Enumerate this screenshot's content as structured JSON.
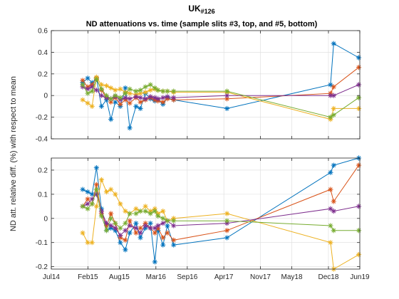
{
  "chart_data": {
    "type": "line",
    "title": "UK",
    "title_subscript": "#126",
    "subtitle": "ND attenuations vs. time (sample slits #3, top, and #5, bottom)",
    "ylabel": "ND att. relative diff. (%) with respect to mean",
    "xlabel": "",
    "grid": true,
    "x_tick_labels": [
      "Jul14",
      "Feb15",
      "Aug15",
      "Mar16",
      "Sep16",
      "Apr17",
      "Nov17",
      "May18",
      "Dec18",
      "Jun19"
    ],
    "x_ticks": [
      2014.5,
      2015.083,
      2015.583,
      2016.167,
      2016.667,
      2017.25,
      2017.833,
      2018.333,
      2018.917,
      2019.417
    ],
    "xlim": [
      2014.5,
      2019.417
    ],
    "colors": [
      "#0072BD",
      "#D95319",
      "#EDB120",
      "#7E2F8E",
      "#77AC30"
    ],
    "panels": [
      {
        "ylim": [
          -0.4,
          0.6
        ],
        "y_ticks": [
          -0.4,
          -0.2,
          0,
          0.2,
          0.4,
          0.6
        ],
        "y_tick_labels": [
          "-0.4",
          "-0.2",
          "0",
          "0.2",
          "0.4",
          "0.6"
        ],
        "series": [
          {
            "x": [
              2015.0,
              2015.08,
              2015.15,
              2015.22,
              2015.3,
              2015.38,
              2015.45,
              2015.52,
              2015.6,
              2015.68,
              2015.75,
              2015.85,
              2015.92,
              2016.0,
              2016.08,
              2016.15,
              2016.2,
              2016.28,
              2016.35,
              2016.45,
              2017.3,
              2018.95,
              2019.0,
              2019.4
            ],
            "y": [
              0.12,
              0.16,
              0.12,
              0.16,
              -0.1,
              -0.04,
              -0.22,
              -0.06,
              -0.1,
              0.07,
              -0.3,
              -0.1,
              -0.12,
              0.02,
              -0.03,
              -0.05,
              -0.04,
              -0.08,
              -0.02,
              -0.04,
              -0.12,
              0.1,
              0.48,
              0.35
            ]
          },
          {
            "x": [
              2015.0,
              2015.08,
              2015.15,
              2015.22,
              2015.3,
              2015.38,
              2015.45,
              2015.52,
              2015.6,
              2015.68,
              2015.75,
              2015.85,
              2015.92,
              2016.0,
              2016.08,
              2016.15,
              2016.2,
              2016.28,
              2016.35,
              2016.45,
              2017.3,
              2018.95,
              2019.0,
              2019.4
            ],
            "y": [
              0.14,
              0.08,
              0.1,
              0.16,
              0.05,
              -0.02,
              -0.06,
              -0.02,
              -0.08,
              -0.04,
              -0.07,
              -0.02,
              -0.06,
              -0.04,
              -0.02,
              -0.04,
              -0.05,
              -0.06,
              -0.03,
              -0.04,
              -0.03,
              0.02,
              0.08,
              0.26
            ]
          },
          {
            "x": [
              2015.0,
              2015.08,
              2015.15,
              2015.22,
              2015.3,
              2015.38,
              2015.45,
              2015.52,
              2015.6,
              2015.68,
              2015.75,
              2015.85,
              2015.92,
              2016.0,
              2016.08,
              2016.15,
              2016.2,
              2016.28,
              2016.35,
              2016.45,
              2017.3,
              2018.95,
              2019.0,
              2019.4
            ],
            "y": [
              -0.04,
              -0.07,
              -0.1,
              0.17,
              0.1,
              0.09,
              0.07,
              0.05,
              0.06,
              0.03,
              0.02,
              0.01,
              0.02,
              0.03,
              0.05,
              0.06,
              0.05,
              0.04,
              0.04,
              0.03,
              0.03,
              -0.22,
              -0.12,
              -0.12
            ]
          },
          {
            "x": [
              2015.0,
              2015.08,
              2015.15,
              2015.22,
              2015.3,
              2015.38,
              2015.45,
              2015.52,
              2015.6,
              2015.68,
              2015.75,
              2015.85,
              2015.92,
              2016.0,
              2016.08,
              2016.15,
              2016.2,
              2016.28,
              2016.35,
              2016.45,
              2017.3,
              2018.95,
              2019.0,
              2019.4
            ],
            "y": [
              0.08,
              0.06,
              0.08,
              0.05,
              0.0,
              -0.02,
              -0.03,
              -0.01,
              -0.04,
              -0.02,
              -0.03,
              -0.01,
              -0.02,
              -0.03,
              -0.01,
              -0.02,
              -0.03,
              -0.02,
              -0.01,
              -0.02,
              0.0,
              0.0,
              0.0,
              0.1
            ]
          },
          {
            "x": [
              2015.0,
              2015.08,
              2015.15,
              2015.22,
              2015.3,
              2015.38,
              2015.45,
              2015.52,
              2015.6,
              2015.68,
              2015.75,
              2015.85,
              2015.92,
              2016.0,
              2016.08,
              2016.15,
              2016.2,
              2016.28,
              2016.35,
              2016.45,
              2017.3,
              2018.95,
              2019.0,
              2019.4
            ],
            "y": [
              0.1,
              0.02,
              0.04,
              0.15,
              0.06,
              0.0,
              -0.03,
              0.0,
              -0.02,
              0.02,
              0.06,
              0.04,
              0.05,
              0.08,
              0.1,
              0.07,
              0.05,
              0.04,
              0.04,
              0.04,
              0.04,
              -0.2,
              -0.18,
              -0.02
            ]
          }
        ]
      },
      {
        "ylim": [
          -0.21,
          0.25
        ],
        "y_ticks": [
          -0.2,
          -0.1,
          0,
          0.1,
          0.2
        ],
        "y_tick_labels": [
          "-0.2",
          "-0.1",
          "0",
          "0.1",
          "0.2"
        ],
        "series": [
          {
            "x": [
              2015.0,
              2015.08,
              2015.15,
              2015.22,
              2015.3,
              2015.38,
              2015.45,
              2015.52,
              2015.6,
              2015.68,
              2015.75,
              2015.85,
              2015.92,
              2016.0,
              2016.08,
              2016.15,
              2016.2,
              2016.28,
              2016.35,
              2016.45,
              2017.3,
              2018.95,
              2019.0,
              2019.4
            ],
            "y": [
              0.12,
              0.11,
              0.1,
              0.21,
              0.04,
              -0.05,
              -0.04,
              -0.05,
              -0.1,
              -0.13,
              -0.06,
              -0.02,
              -0.08,
              -0.04,
              -0.02,
              -0.18,
              -0.05,
              -0.11,
              -0.03,
              -0.11,
              -0.08,
              0.19,
              0.22,
              0.25
            ]
          },
          {
            "x": [
              2015.0,
              2015.08,
              2015.15,
              2015.22,
              2015.3,
              2015.38,
              2015.45,
              2015.52,
              2015.6,
              2015.68,
              2015.75,
              2015.85,
              2015.92,
              2016.0,
              2016.08,
              2016.15,
              2016.2,
              2016.28,
              2016.35,
              2016.45,
              2017.3,
              2018.95,
              2019.0,
              2019.4
            ],
            "y": [
              0.05,
              0.08,
              0.06,
              0.14,
              0.02,
              -0.03,
              0.02,
              -0.02,
              -0.08,
              -0.09,
              -0.01,
              -0.06,
              -0.04,
              -0.02,
              -0.04,
              -0.06,
              -0.04,
              -0.08,
              -0.06,
              -0.09,
              -0.05,
              0.12,
              0.07,
              0.22
            ]
          },
          {
            "x": [
              2015.0,
              2015.08,
              2015.15,
              2015.22,
              2015.3,
              2015.38,
              2015.45,
              2015.52,
              2015.6,
              2015.68,
              2015.75,
              2015.85,
              2015.92,
              2016.0,
              2016.08,
              2016.15,
              2016.2,
              2016.28,
              2016.35,
              2016.45,
              2017.3,
              2018.95,
              2019.0,
              2019.4
            ],
            "y": [
              -0.06,
              -0.1,
              -0.1,
              0.05,
              0.16,
              0.11,
              0.12,
              0.1,
              0.06,
              0.03,
              0.02,
              0.04,
              0.03,
              0.05,
              0.03,
              0.04,
              0.02,
              0.03,
              -0.01,
              0.0,
              0.02,
              -0.1,
              -0.21,
              -0.15
            ]
          },
          {
            "x": [
              2015.0,
              2015.08,
              2015.15,
              2015.22,
              2015.3,
              2015.38,
              2015.45,
              2015.52,
              2015.6,
              2015.68,
              2015.75,
              2015.85,
              2015.92,
              2016.0,
              2016.08,
              2016.15,
              2016.2,
              2016.28,
              2016.35,
              2016.45,
              2017.3,
              2018.95,
              2019.0,
              2019.4
            ],
            "y": [
              0.05,
              0.06,
              0.08,
              0.1,
              0.03,
              -0.02,
              -0.03,
              -0.04,
              -0.07,
              -0.05,
              -0.03,
              -0.04,
              -0.06,
              -0.03,
              -0.04,
              -0.04,
              -0.03,
              -0.02,
              -0.01,
              -0.03,
              -0.02,
              0.04,
              0.03,
              0.05
            ]
          },
          {
            "x": [
              2015.0,
              2015.08,
              2015.15,
              2015.22,
              2015.3,
              2015.38,
              2015.45,
              2015.52,
              2015.6,
              2015.68,
              2015.75,
              2015.85,
              2015.92,
              2016.0,
              2016.08,
              2016.15,
              2016.2,
              2016.28,
              2016.35,
              2016.45,
              2017.3,
              2018.95,
              2019.0,
              2019.4
            ],
            "y": [
              0.05,
              0.04,
              0.06,
              0.12,
              0.01,
              -0.05,
              0.0,
              -0.02,
              -0.04,
              -0.02,
              0.02,
              0.02,
              0.03,
              0.03,
              0.02,
              0.03,
              0.01,
              0.0,
              -0.01,
              -0.01,
              -0.01,
              -0.03,
              -0.05,
              -0.05
            ]
          }
        ]
      }
    ]
  }
}
